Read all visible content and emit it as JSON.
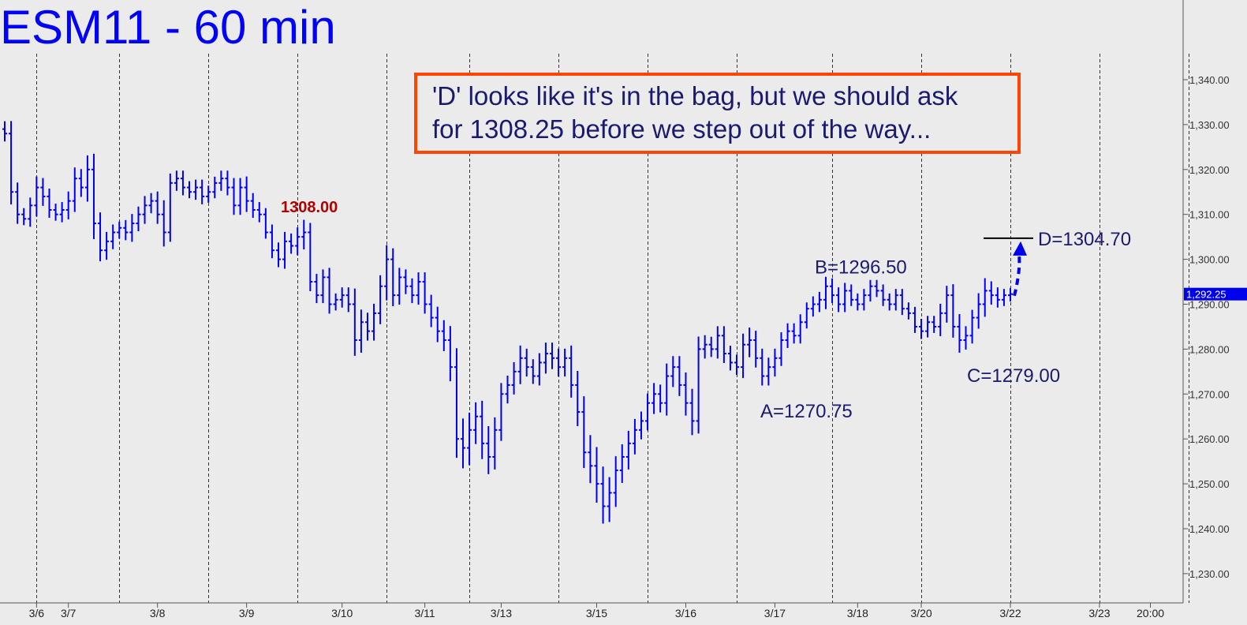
{
  "title": "ESM11 - 60 min",
  "colors": {
    "background": "#ebebeb",
    "bars": "#0000ee",
    "title": "#0000ff",
    "labels": "#1a1a6e",
    "highlight": "#b00000",
    "callout_border": "#ff4500",
    "price_tag": "#0000ee"
  },
  "chart_data": {
    "type": "ohlc-bar",
    "instrument": "ESM11",
    "interval": "60 min",
    "ylim": [
      1223,
      1352
    ],
    "yticks": [
      1230,
      1240,
      1250,
      1260,
      1270,
      1280,
      1290,
      1300,
      1310,
      1320,
      1330,
      1340
    ],
    "ytick_labels": [
      "1,230.00",
      "1,240.00",
      "1,250.00",
      "1,260.00",
      "1,270.00",
      "1,280.00",
      "1,290.00",
      "1,300.00",
      "1,310.00",
      "1,320.00",
      "1,330.00",
      "1,340.00"
    ],
    "last_price_label": "1,292.25",
    "last_price": 1292.25,
    "xtick_labels": [
      "3/6",
      "3/7",
      "3/8",
      "3/9",
      "3/10",
      "3/11",
      "3/13",
      "3/15",
      "3/16",
      "3/17",
      "3/18",
      "3/20",
      "3/22",
      "3/23",
      "20:00"
    ],
    "xtick_bar_index": [
      5,
      10,
      24,
      38,
      53,
      66,
      78,
      93,
      107,
      121,
      134,
      144,
      158,
      172,
      180
    ],
    "session_divider_bar_index": [
      5,
      18,
      32,
      46,
      60,
      73,
      87,
      101,
      115,
      130,
      144,
      158,
      172,
      186
    ],
    "closes": [
      1328,
      1315,
      1310,
      1309,
      1312,
      1316,
      1314,
      1311,
      1310,
      1311,
      1313,
      1318,
      1316,
      1320,
      1308,
      1302,
      1304,
      1306,
      1307,
      1306,
      1308,
      1310,
      1312,
      1313,
      1310,
      1306,
      1317,
      1318,
      1316,
      1315,
      1316,
      1314,
      1315,
      1317,
      1318,
      1316,
      1312,
      1316,
      1313,
      1311,
      1310,
      1306,
      1302,
      1300,
      1304,
      1303,
      1305,
      1306,
      1295,
      1292,
      1296,
      1290,
      1291,
      1292,
      1290,
      1282,
      1286,
      1284,
      1288,
      1294,
      1300,
      1292,
      1296,
      1294,
      1292,
      1295,
      1290,
      1287,
      1284,
      1282,
      1276,
      1260,
      1258,
      1262,
      1265,
      1259,
      1256,
      1262,
      1270,
      1272,
      1275,
      1278,
      1276,
      1274,
      1277,
      1279,
      1278,
      1276,
      1278,
      1272,
      1266,
      1257,
      1254,
      1250,
      1245,
      1248,
      1253,
      1256,
      1259,
      1262,
      1264,
      1268,
      1270,
      1268,
      1274,
      1276,
      1272,
      1268,
      1264,
      1280,
      1281,
      1280,
      1283,
      1279,
      1277,
      1276,
      1281,
      1282,
      1278,
      1274,
      1276,
      1278,
      1282,
      1284,
      1283,
      1286,
      1289,
      1290,
      1291,
      1294,
      1292,
      1290,
      1293,
      1291,
      1290,
      1292,
      1294,
      1293,
      1291,
      1290,
      1292,
      1289,
      1288,
      1285,
      1284,
      1286,
      1285,
      1288,
      1292,
      1285,
      1282,
      1283,
      1287,
      1290,
      1293,
      1292,
      1291,
      1292,
      1292.25
    ],
    "ranges": [
      5,
      8,
      6,
      4,
      5,
      7,
      6,
      5,
      4,
      5,
      6,
      7,
      6,
      9,
      10,
      7,
      6,
      5,
      4,
      5,
      6,
      5,
      6,
      5,
      6,
      9,
      6,
      5,
      5,
      4,
      5,
      5,
      4,
      4,
      5,
      5,
      6,
      6,
      7,
      5,
      5,
      4,
      5,
      5,
      6,
      5,
      6,
      8,
      6,
      5,
      5,
      6,
      4,
      5,
      5,
      10,
      8,
      6,
      6,
      7,
      9,
      7,
      6,
      5,
      5,
      6,
      6,
      6,
      7,
      7,
      9,
      12,
      13,
      11,
      9,
      10,
      11,
      8,
      7,
      6,
      6,
      8,
      6,
      5,
      6,
      7,
      7,
      6,
      6,
      8,
      9,
      10,
      11,
      12,
      11,
      10,
      9,
      8,
      8,
      7,
      6,
      6,
      7,
      6,
      8,
      7,
      7,
      8,
      9,
      8,
      6,
      5,
      6,
      6,
      5,
      5,
      7,
      8,
      6,
      6,
      6,
      6,
      5,
      5,
      5,
      5,
      4,
      5,
      5,
      6,
      5,
      5,
      5,
      4,
      4,
      4,
      4,
      4,
      4,
      4,
      4,
      4,
      4,
      4,
      5,
      4,
      4,
      6,
      6,
      7,
      8,
      6,
      5,
      7,
      8,
      6,
      5,
      4,
      4,
      4
    ]
  },
  "annotations": {
    "callout_line1": "'D' looks like it's in the bag, but we should ask",
    "callout_line2": "for 1308.25 before we step out of the way...",
    "peak_label": "1308.00",
    "peak_price": 1308.0,
    "a_label": "A=1270.75",
    "a_price": 1270.75,
    "b_label": "B=1296.50",
    "b_price": 1296.5,
    "c_label": "C=1279.00",
    "c_price": 1279.0,
    "d_label": "D=1304.70",
    "d_price": 1304.7
  }
}
